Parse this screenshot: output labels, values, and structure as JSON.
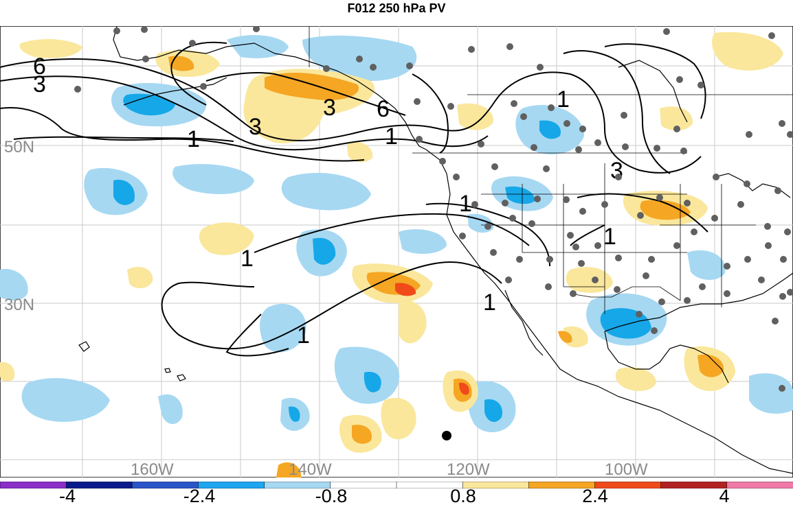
{
  "title": "F012 250 hPa PV",
  "map": {
    "lat_labels": [
      "50N",
      "30N"
    ],
    "lon_labels": [
      "160W",
      "140W",
      "120W",
      "100W"
    ],
    "contour_labels": [
      "6",
      "3",
      "3",
      "3",
      "1",
      "1",
      "6",
      "1",
      "1",
      "3",
      "1",
      "1",
      "1",
      "1"
    ],
    "colors": {
      "land_outline": "#000000",
      "grid": "#c8c8c8",
      "contour": "#000000",
      "pos_light": "#fae79c",
      "pos_mid": "#f5a623",
      "pos_strong": "#f04a1a",
      "neg_light": "#a6d8f2",
      "neg_mid": "#16a7e8",
      "station": "#606060"
    }
  },
  "colorbar": {
    "tick_labels": [
      "-4",
      "-2.4",
      "-0.8",
      "0.8",
      "2.4",
      "4"
    ],
    "colors": [
      "#8b2fc9",
      "#0a1a8c",
      "#2a55c9",
      "#1ea6f0",
      "#a6d8f2",
      "#ffffff",
      "#ffffff",
      "#fae79c",
      "#f5a623",
      "#f04a1a",
      "#b22222",
      "#f07aa8"
    ]
  }
}
